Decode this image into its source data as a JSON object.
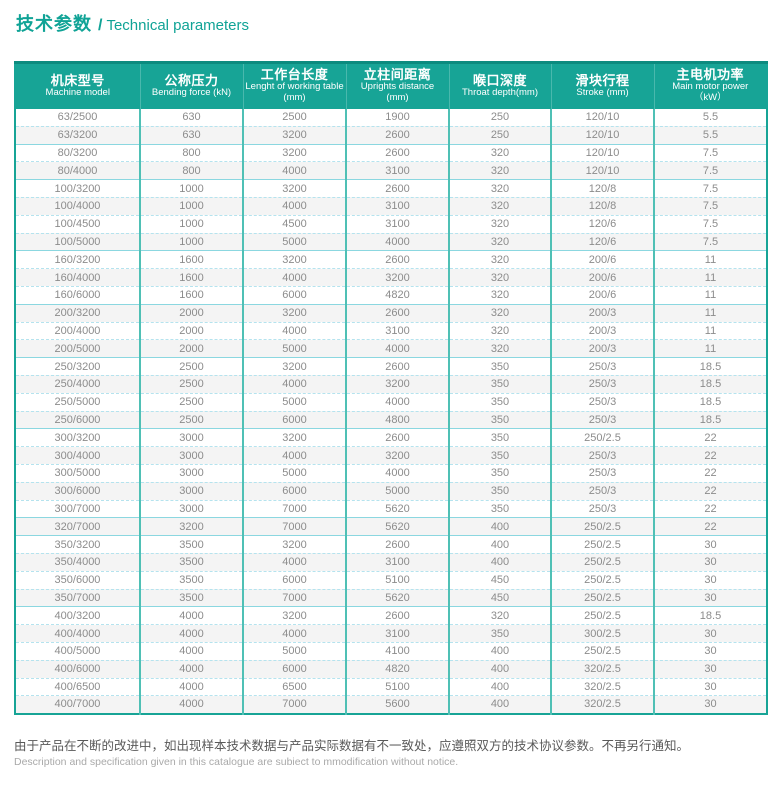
{
  "header": {
    "title_cn": "技术参数",
    "divider": "/",
    "title_en": "Technical parameters"
  },
  "table": {
    "columns": [
      {
        "cn": "机床型号",
        "en": "Machine model",
        "unit": ""
      },
      {
        "cn": "公称压力",
        "en": "Bending force (kN)",
        "unit": ""
      },
      {
        "cn": "工作台长度",
        "en": "Lenght of working table",
        "unit": "(mm)"
      },
      {
        "cn": "立柱间距离",
        "en": "Uprights distance",
        "unit": "(mm)"
      },
      {
        "cn": "喉口深度",
        "en": "Throat depth(mm)",
        "unit": ""
      },
      {
        "cn": "滑块行程",
        "en": "Stroke (mm)",
        "unit": ""
      },
      {
        "cn": "主电机功率",
        "en": "Main motor power",
        "unit": "（kW）"
      }
    ],
    "rows": [
      [
        "63/2500",
        "630",
        "2500",
        "1900",
        "250",
        "120/10",
        "5.5"
      ],
      [
        "63/3200",
        "630",
        "3200",
        "2600",
        "250",
        "120/10",
        "5.5"
      ],
      [
        "80/3200",
        "800",
        "3200",
        "2600",
        "320",
        "120/10",
        "7.5"
      ],
      [
        "80/4000",
        "800",
        "4000",
        "3100",
        "320",
        "120/10",
        "7.5"
      ],
      [
        "100/3200",
        "1000",
        "3200",
        "2600",
        "320",
        "120/8",
        "7.5"
      ],
      [
        "100/4000",
        "1000",
        "4000",
        "3100",
        "320",
        "120/8",
        "7.5"
      ],
      [
        "100/4500",
        "1000",
        "4500",
        "3100",
        "320",
        "120/6",
        "7.5"
      ],
      [
        "100/5000",
        "1000",
        "5000",
        "4000",
        "320",
        "120/6",
        "7.5"
      ],
      [
        "160/3200",
        "1600",
        "3200",
        "2600",
        "320",
        "200/6",
        "11"
      ],
      [
        "160/4000",
        "1600",
        "4000",
        "3200",
        "320",
        "200/6",
        "11"
      ],
      [
        "160/6000",
        "1600",
        "6000",
        "4820",
        "320",
        "200/6",
        "11"
      ],
      [
        "200/3200",
        "2000",
        "3200",
        "2600",
        "320",
        "200/3",
        "11"
      ],
      [
        "200/4000",
        "2000",
        "4000",
        "3100",
        "320",
        "200/3",
        "11"
      ],
      [
        "200/5000",
        "2000",
        "5000",
        "4000",
        "320",
        "200/3",
        "11"
      ],
      [
        "250/3200",
        "2500",
        "3200",
        "2600",
        "350",
        "250/3",
        "18.5"
      ],
      [
        "250/4000",
        "2500",
        "4000",
        "3200",
        "350",
        "250/3",
        "18.5"
      ],
      [
        "250/5000",
        "2500",
        "5000",
        "4000",
        "350",
        "250/3",
        "18.5"
      ],
      [
        "250/6000",
        "2500",
        "6000",
        "4800",
        "350",
        "250/3",
        "18.5"
      ],
      [
        "300/3200",
        "3000",
        "3200",
        "2600",
        "350",
        "250/2.5",
        "22"
      ],
      [
        "300/4000",
        "3000",
        "4000",
        "3200",
        "350",
        "250/3",
        "22"
      ],
      [
        "300/5000",
        "3000",
        "5000",
        "4000",
        "350",
        "250/3",
        "22"
      ],
      [
        "300/6000",
        "3000",
        "6000",
        "5000",
        "350",
        "250/3",
        "22"
      ],
      [
        "300/7000",
        "3000",
        "7000",
        "5620",
        "350",
        "250/3",
        "22"
      ],
      [
        "320/7000",
        "3200",
        "7000",
        "5620",
        "400",
        "250/2.5",
        "22"
      ],
      [
        "350/3200",
        "3500",
        "3200",
        "2600",
        "400",
        "250/2.5",
        "30"
      ],
      [
        "350/4000",
        "3500",
        "4000",
        "3100",
        "400",
        "250/2.5",
        "30"
      ],
      [
        "350/6000",
        "3500",
        "6000",
        "5100",
        "450",
        "250/2.5",
        "30"
      ],
      [
        "350/7000",
        "3500",
        "7000",
        "5620",
        "450",
        "250/2.5",
        "30"
      ],
      [
        "400/3200",
        "4000",
        "3200",
        "2600",
        "320",
        "250/2.5",
        "18.5"
      ],
      [
        "400/4000",
        "4000",
        "4000",
        "3100",
        "350",
        "300/2.5",
        "30"
      ],
      [
        "400/5000",
        "4000",
        "5000",
        "4100",
        "400",
        "250/2.5",
        "30"
      ],
      [
        "400/6000",
        "4000",
        "6000",
        "4820",
        "400",
        "320/2.5",
        "30"
      ],
      [
        "400/6500",
        "4000",
        "6500",
        "5100",
        "400",
        "320/2.5",
        "30"
      ],
      [
        "400/7000",
        "4000",
        "7000",
        "5600",
        "400",
        "320/2.5",
        "30"
      ]
    ]
  },
  "footer": {
    "note_cn": "由于产品在不断的改进中，如出现样本技术数据与产品实际数据有不一致处，应遵照双方的技术协议参数。不再另行通知。",
    "note_en": "Description and specification given in this catalogue are subiect to mmodification without notice."
  },
  "colors": {
    "accent_teal": "#17a496",
    "accent_dark": "#0c8b7f",
    "title_teal": "#10a396",
    "row_alt": "#f4f4f4",
    "cell_text": "#8c8c8c"
  }
}
